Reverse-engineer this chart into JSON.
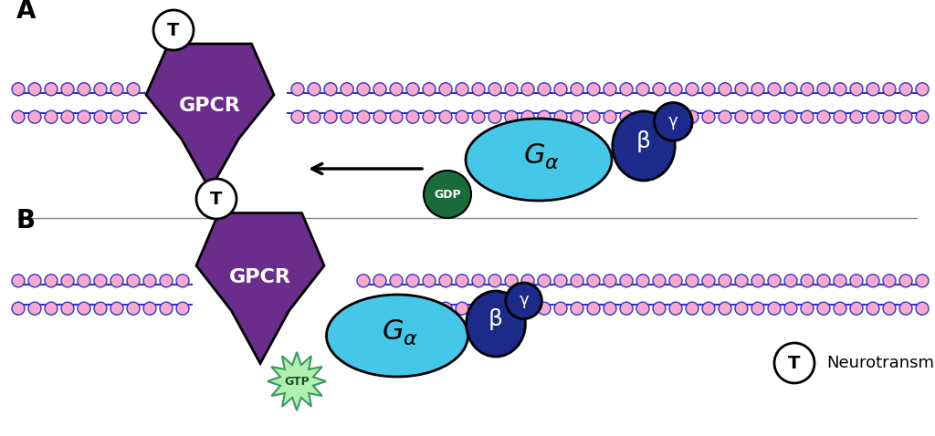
{
  "colors": {
    "purple": "#6B2D8B",
    "cyan": "#45C8E8",
    "dark_blue": "#1C2B8A",
    "dark_green": "#1A6B3C",
    "light_green_star": "#B0F0B0",
    "star_edge": "#3A9A5A",
    "star_text": "#1A5020",
    "membrane_blue": "#3333CC",
    "membrane_pink": "#F8AACC",
    "white": "#FFFFFF",
    "black": "#000000",
    "bg": "#FFFFFF",
    "separator": "#888888"
  },
  "panel_A_label": "A",
  "panel_B_label": "B",
  "gpcr_label": "GPCR",
  "ga_label": "Gα",
  "beta_label": "β",
  "gamma_label": "γ",
  "gdp_label": "GDP",
  "gtp_label": "GTP",
  "T_label": "T",
  "neurotransmitter_label": "Neurotransmitter"
}
